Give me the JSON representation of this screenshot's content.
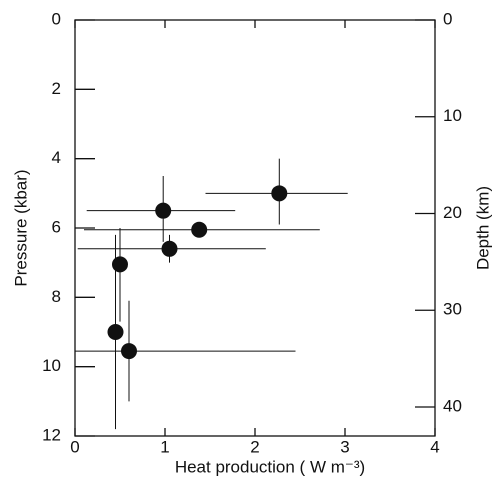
{
  "chart_data": {
    "type": "scatter",
    "x_label": "Heat production ( W m⁻³)",
    "y_label": "Pressure (kbar)",
    "y2_label": "Depth (km)",
    "xlim": [
      0,
      4
    ],
    "xticks": [
      0,
      1,
      2,
      3,
      4
    ],
    "ylim": [
      12,
      0
    ],
    "yticks": [
      0,
      2,
      4,
      6,
      8,
      10,
      12
    ],
    "y2lim": [
      43,
      0
    ],
    "y2ticks": [
      0,
      10,
      20,
      30,
      40
    ],
    "color": "#111111",
    "series": [
      {
        "name": null,
        "color": "#111111",
        "x": [
          2.27,
          0.98,
          1.38,
          1.05,
          0.5,
          0.45,
          0.6
        ],
        "values": [
          5.0,
          5.5,
          6.05,
          6.6,
          7.05,
          9.0,
          9.55
        ],
        "x_low": [
          1.45,
          0.13,
          0.1,
          0.03,
          null,
          null,
          0.0
        ],
        "x_high": [
          3.03,
          1.78,
          2.72,
          2.12,
          null,
          null,
          2.45
        ],
        "y_low": [
          4.0,
          4.5,
          null,
          6.2,
          6.0,
          6.2,
          8.1
        ],
        "y_high": [
          5.9,
          6.4,
          null,
          7.0,
          8.7,
          11.8,
          11.0
        ]
      }
    ]
  }
}
